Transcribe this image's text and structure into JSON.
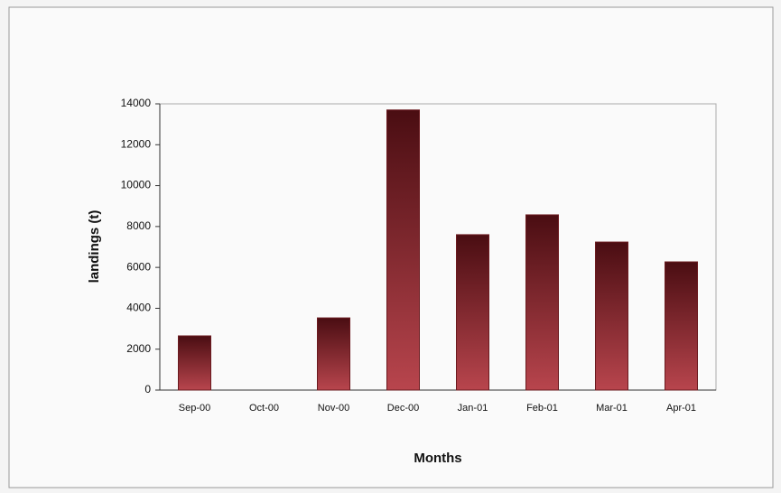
{
  "chart_data": {
    "type": "bar",
    "categories": [
      "Sep-00",
      "Oct-00",
      "Nov-00",
      "Dec-00",
      "Jan-01",
      "Feb-01",
      "Mar-01",
      "Apr-01"
    ],
    "values": [
      2650,
      0,
      3530,
      13700,
      7600,
      8570,
      7240,
      6270
    ],
    "color": "#6b1a1f",
    "x_label": "Months",
    "y_label": "landings (t)",
    "ylim": [
      0,
      14000
    ],
    "yticks": [
      0,
      2000,
      4000,
      6000,
      8000,
      10000,
      12000,
      14000
    ]
  }
}
